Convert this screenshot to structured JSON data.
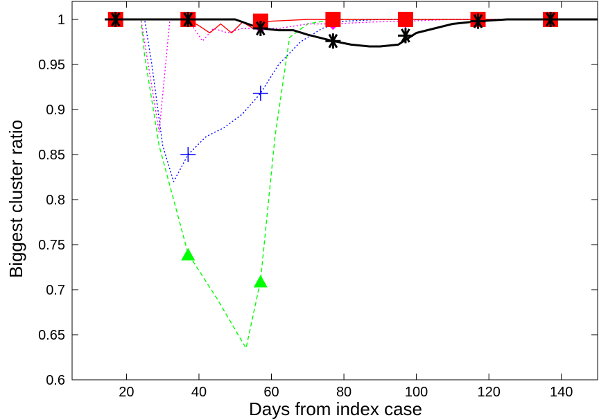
{
  "chart_data": {
    "type": "line",
    "title": "",
    "xlabel": "Days from index case",
    "ylabel": "Biggest cluster ratio",
    "xlim": [
      5,
      150
    ],
    "ylim": [
      0.6,
      1.02
    ],
    "x_ticks": [
      20,
      40,
      60,
      80,
      100,
      120,
      140
    ],
    "y_ticks": [
      0.6,
      0.65,
      0.7,
      0.75,
      0.8,
      0.85,
      0.9,
      0.95,
      1
    ],
    "grid": false,
    "series": [
      {
        "color": "#00ff00",
        "dash": "dashed",
        "marker": "triangle",
        "x": [
          14,
          17,
          24,
          25,
          29,
          37,
          45,
          53,
          57,
          61,
          65,
          70,
          77,
          90,
          100,
          150
        ],
        "y": [
          1,
          1,
          1,
          0.96,
          0.86,
          0.74,
          0.69,
          0.635,
          0.71,
          0.87,
          0.98,
          0.995,
          1,
          1,
          1,
          1
        ],
        "marker_x": [
          17,
          37,
          57,
          77,
          97,
          117,
          137
        ],
        "marker_y": [
          1,
          0.738,
          0.708,
          1,
          1,
          1,
          1
        ]
      },
      {
        "color": "#0000ff",
        "dash": "dotted",
        "marker": "plus",
        "x": [
          14,
          17,
          25,
          27,
          30,
          33,
          37,
          42,
          47,
          52,
          57,
          62,
          68,
          74,
          80,
          90,
          100,
          150
        ],
        "y": [
          1,
          1,
          1,
          0.95,
          0.86,
          0.82,
          0.85,
          0.87,
          0.88,
          0.895,
          0.918,
          0.95,
          0.975,
          0.99,
          0.998,
          1,
          1,
          1
        ],
        "marker_x": [
          17,
          37,
          57,
          77,
          97,
          117,
          137
        ],
        "marker_y": [
          1,
          0.85,
          0.918,
          1,
          1,
          1,
          1
        ]
      },
      {
        "color": "#ff00ff",
        "dash": "dotted",
        "marker": "diamond",
        "x": [
          14,
          17,
          24,
          26,
          29,
          32,
          35,
          37,
          41,
          44,
          48,
          52,
          57,
          62,
          70,
          77,
          87,
          97,
          110,
          150
        ],
        "y": [
          1,
          1,
          1,
          0.95,
          0.875,
          1,
          1,
          1,
          0.976,
          0.99,
          0.985,
          0.99,
          0.99,
          0.99,
          0.995,
          0.995,
          0.997,
          0.998,
          1,
          1
        ],
        "marker_x": [
          17,
          37,
          57,
          77,
          97,
          117,
          137
        ],
        "marker_y": [
          1,
          1,
          0.992,
          0.996,
          0.998,
          1,
          1
        ]
      },
      {
        "color": "#ff0000",
        "dash": "solid",
        "marker": "square",
        "x": [
          14,
          17,
          37,
          40,
          43,
          46,
          49,
          52,
          55,
          57,
          60,
          65,
          70,
          77,
          90,
          150
        ],
        "y": [
          1,
          1,
          1,
          0.993,
          0.985,
          0.995,
          0.985,
          0.997,
          0.99,
          0.997,
          0.998,
          0.999,
          1,
          1,
          1,
          1
        ],
        "marker_x": [
          17,
          37,
          57,
          77,
          97,
          117,
          137
        ],
        "marker_y": [
          1,
          1,
          0.998,
          1,
          1,
          1,
          1
        ]
      },
      {
        "color": "#000000",
        "dash": "solid",
        "marker": "asterisk",
        "x": [
          14,
          17,
          37,
          50,
          57,
          62,
          66,
          70,
          77,
          82,
          87,
          90,
          95,
          100,
          105,
          110,
          117,
          125,
          137,
          150
        ],
        "y": [
          1,
          1,
          1,
          1,
          0.99,
          0.988,
          0.988,
          0.983,
          0.976,
          0.972,
          0.97,
          0.97,
          0.972,
          0.985,
          0.99,
          0.995,
          0.998,
          1,
          1,
          1
        ],
        "marker_x": [
          17,
          37,
          57,
          77,
          97,
          117,
          137
        ],
        "marker_y": [
          1,
          1,
          0.99,
          0.976,
          0.982,
          0.998,
          1
        ]
      }
    ]
  }
}
